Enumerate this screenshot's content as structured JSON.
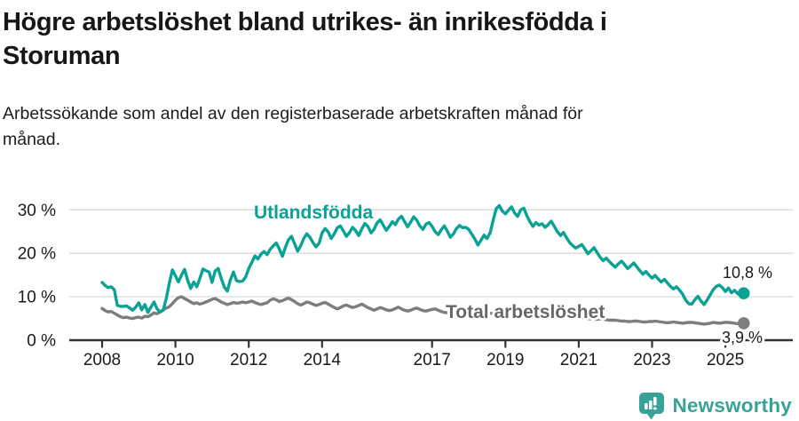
{
  "header": {
    "title": "Högre arbetslöshet bland utrikes- än inrikesfödda i\nStoruman",
    "subtitle": "Arbetssökande som andel av den registerbaserade arbetskraften månad för\nmånad."
  },
  "chart_data": {
    "type": "line",
    "title": "Högre arbetslöshet bland utrikes- än inrikesfödda i Storuman",
    "subtitle": "Arbetssökande som andel av den registerbaserade arbetskraften månad för månad.",
    "xlabel": "",
    "ylabel": "",
    "x_start_year": 2008,
    "points_per_year": 12,
    "x_end": "2025-07",
    "x_tick_years": [
      2008,
      2010,
      2012,
      2014,
      2017,
      2019,
      2021,
      2023,
      2025
    ],
    "y_ticks": [
      0,
      10,
      20,
      30
    ],
    "y_tick_suffix": " %",
    "ylim": [
      0,
      32
    ],
    "grid": "horizontal",
    "legend_position": "inline-labels",
    "series": [
      {
        "name": "Utlandsfödda",
        "color": "#0ba296",
        "end_value": 10.8,
        "end_label": "10,8 %",
        "values": [
          13.3,
          12.6,
          12.1,
          12.3,
          11.6,
          8.0,
          7.8,
          7.8,
          7.9,
          7.4,
          6.9,
          7.6,
          8.6,
          7.0,
          8.2,
          6.4,
          7.6,
          8.8,
          7.2,
          6.5,
          6.9,
          9.6,
          13.1,
          16.2,
          14.8,
          13.4,
          15.0,
          16.3,
          13.8,
          11.9,
          13.4,
          12.3,
          14.2,
          16.4,
          16.0,
          15.7,
          13.3,
          15.9,
          16.5,
          14.2,
          12.2,
          11.3,
          13.9,
          15.7,
          13.7,
          13.5,
          13.6,
          14.6,
          16.5,
          17.9,
          19.4,
          18.7,
          19.8,
          20.4,
          19.7,
          20.9,
          21.7,
          22.4,
          21.0,
          19.3,
          21.4,
          23.1,
          23.9,
          22.2,
          20.5,
          21.7,
          23.4,
          24.5,
          23.7,
          22.5,
          21.5,
          22.3,
          24.7,
          25.7,
          24.9,
          23.4,
          24.5,
          25.9,
          26.3,
          25.1,
          23.9,
          24.8,
          26.0,
          25.2,
          24.1,
          25.6,
          26.9,
          26.2,
          24.7,
          25.5,
          27.0,
          27.7,
          26.5,
          25.3,
          26.2,
          27.3,
          26.6,
          27.9,
          28.5,
          27.3,
          26.1,
          27.2,
          28.4,
          27.6,
          26.3,
          25.5,
          26.7,
          27.1,
          26.2,
          25.0,
          24.3,
          25.4,
          26.3,
          25.1,
          23.7,
          24.5,
          25.7,
          26.4,
          25.9,
          26.0,
          25.5,
          24.4,
          23.3,
          21.9,
          23.0,
          24.2,
          23.4,
          24.7,
          27.6,
          30.3,
          31.0,
          29.7,
          29.1,
          29.9,
          30.7,
          29.3,
          28.5,
          30.0,
          30.4,
          28.7,
          27.3,
          26.2,
          27.1,
          26.5,
          26.8,
          26.0,
          26.6,
          27.4,
          26.2,
          25.0,
          24.1,
          24.8,
          23.6,
          22.5,
          21.8,
          21.2,
          21.6,
          22.0,
          21.0,
          19.9,
          20.6,
          21.3,
          20.2,
          19.1,
          18.3,
          18.9,
          18.1,
          17.4,
          16.8,
          17.6,
          18.2,
          17.4,
          16.5,
          17.1,
          17.8,
          16.9,
          16.0,
          15.2,
          15.8,
          15.0,
          14.3,
          14.9,
          14.1,
          13.4,
          14.0,
          13.2,
          12.4,
          11.8,
          12.3,
          11.5,
          10.6,
          9.2,
          8.4,
          8.3,
          9.3,
          10.1,
          9.0,
          8.2,
          9.2,
          10.4,
          11.6,
          12.4,
          12.7,
          12.1,
          11.2,
          12.0,
          10.9,
          11.5,
          10.7,
          11.3,
          10.8
        ]
      },
      {
        "name": "Total arbetslöshet",
        "color": "#7d7d7d",
        "end_value": 3.9,
        "end_label": "3,9 %",
        "values": [
          7.3,
          6.8,
          6.5,
          6.6,
          6.2,
          5.8,
          5.4,
          5.2,
          5.3,
          5.1,
          5.0,
          5.2,
          5.3,
          5.1,
          5.5,
          5.4,
          5.8,
          6.3,
          6.1,
          6.5,
          7.0,
          7.4,
          7.7,
          8.4,
          9.2,
          9.8,
          10.0,
          9.6,
          9.2,
          8.8,
          8.4,
          8.6,
          8.3,
          8.5,
          8.8,
          9.1,
          9.4,
          9.6,
          9.2,
          8.8,
          8.5,
          8.2,
          8.4,
          8.7,
          8.5,
          8.6,
          8.8,
          8.6,
          8.8,
          9.0,
          8.7,
          8.4,
          8.2,
          8.4,
          8.6,
          9.2,
          9.5,
          9.3,
          8.9,
          9.1,
          9.4,
          9.7,
          9.3,
          8.9,
          8.4,
          8.1,
          8.4,
          8.8,
          8.6,
          8.3,
          8.0,
          8.2,
          8.5,
          8.7,
          8.3,
          7.9,
          7.5,
          7.2,
          7.5,
          7.9,
          8.1,
          7.8,
          7.5,
          7.7,
          8.0,
          8.3,
          7.9,
          7.5,
          7.2,
          6.9,
          7.2,
          7.5,
          7.3,
          7.0,
          6.8,
          7.0,
          7.3,
          7.6,
          7.2,
          6.9,
          6.7,
          6.9,
          7.2,
          7.4,
          7.1,
          6.8,
          6.7,
          6.9,
          7.1,
          7.2,
          6.9,
          6.6,
          6.4,
          6.3,
          6.5,
          6.8,
          6.6,
          6.4,
          6.3,
          6.5,
          6.7,
          6.8,
          6.5,
          6.2,
          6.0,
          5.8,
          6.0,
          6.2,
          6.1,
          5.9,
          5.7,
          5.9,
          6.0,
          6.1,
          5.8,
          5.5,
          5.3,
          5.2,
          5.4,
          5.6,
          5.5,
          5.3,
          5.2,
          5.4,
          5.5,
          5.6,
          5.8,
          6.0,
          5.9,
          5.7,
          5.5,
          5.6,
          5.4,
          5.2,
          5.1,
          5.2,
          5.3,
          5.2,
          5.1,
          5.0,
          4.9,
          4.8,
          4.8,
          4.9,
          4.8,
          4.7,
          4.6,
          4.6,
          4.6,
          4.5,
          4.4,
          4.4,
          4.3,
          4.3,
          4.4,
          4.4,
          4.3,
          4.2,
          4.2,
          4.3,
          4.3,
          4.4,
          4.3,
          4.2,
          4.1,
          4.0,
          4.1,
          4.2,
          4.1,
          4.0,
          3.9,
          4.0,
          4.1,
          4.1,
          4.0,
          3.9,
          3.8,
          3.7,
          3.8,
          3.9,
          4.1,
          4.0,
          3.9,
          4.0,
          4.1,
          4.1,
          4.0,
          3.9,
          3.8,
          4.0,
          3.9
        ]
      }
    ]
  },
  "annotations": {
    "utlandsfodda_label": "Utlandsfödda",
    "total_label": "Total arbetslöshet",
    "teal_end_label": "10,8 %",
    "gray_end_label": "3,9 %"
  },
  "footer": {
    "brand": "Newsworthy",
    "logo_icon": "bar-chart-speech-bubble-icon",
    "brand_color": "#38a296"
  },
  "colors": {
    "series_utlandsfodda": "#0ba296",
    "series_total": "#7d7d7d",
    "gridline": "#dadada",
    "axis": "#333333",
    "text": "#1a1a1a",
    "background": "#ffffff"
  }
}
